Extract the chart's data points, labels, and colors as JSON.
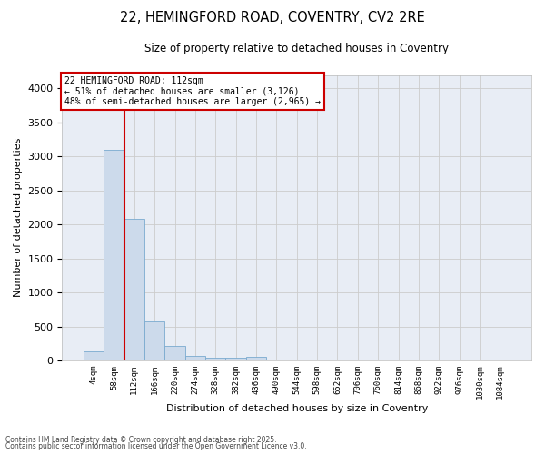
{
  "title1": "22, HEMINGFORD ROAD, COVENTRY, CV2 2RE",
  "title2": "Size of property relative to detached houses in Coventry",
  "xlabel": "Distribution of detached houses by size in Coventry",
  "ylabel": "Number of detached properties",
  "bar_labels": [
    "4sqm",
    "58sqm",
    "112sqm",
    "166sqm",
    "220sqm",
    "274sqm",
    "328sqm",
    "382sqm",
    "436sqm",
    "490sqm",
    "544sqm",
    "598sqm",
    "652sqm",
    "706sqm",
    "760sqm",
    "814sqm",
    "868sqm",
    "922sqm",
    "976sqm",
    "1030sqm",
    "1084sqm"
  ],
  "bar_values": [
    130,
    3100,
    2080,
    570,
    215,
    70,
    45,
    40,
    50,
    0,
    0,
    0,
    0,
    0,
    0,
    0,
    0,
    0,
    0,
    0,
    0
  ],
  "bar_color": "#ccdaeb",
  "bar_edgecolor": "#7aaacf",
  "bar_linewidth": 0.6,
  "redline_index": 1.5,
  "redline_color": "#cc0000",
  "annotation_line1": "22 HEMINGFORD ROAD: 112sqm",
  "annotation_line2": "← 51% of detached houses are smaller (3,126)",
  "annotation_line3": "48% of semi-detached houses are larger (2,965) →",
  "annotation_boxcolor": "white",
  "annotation_edgecolor": "#cc0000",
  "ylim": [
    0,
    4200
  ],
  "yticks": [
    0,
    500,
    1000,
    1500,
    2000,
    2500,
    3000,
    3500,
    4000
  ],
  "background_color": "#e8edf5",
  "grid_color": "#cccccc",
  "footer1": "Contains HM Land Registry data © Crown copyright and database right 2025.",
  "footer2": "Contains public sector information licensed under the Open Government Licence v3.0."
}
